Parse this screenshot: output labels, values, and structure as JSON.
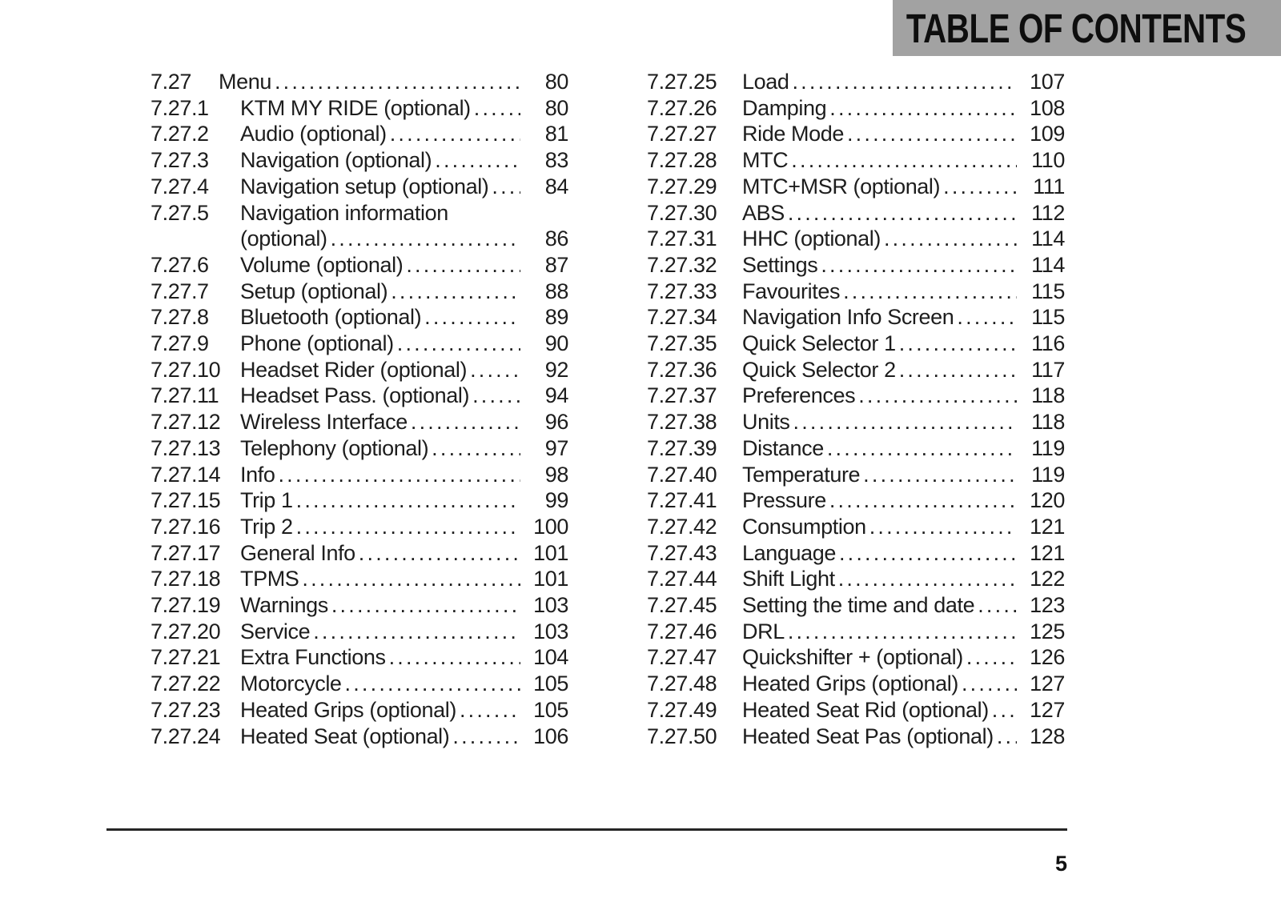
{
  "page": {
    "header_title": "TABLE OF CONTENTS",
    "page_number": "5",
    "colors": {
      "header_bg": "#a2a2a2",
      "text": "#1d1d1d",
      "rule": "#262626"
    }
  },
  "toc": {
    "columns": [
      {
        "entries": [
          {
            "num": "7.27",
            "title": "Menu",
            "page": "80",
            "level": "main"
          },
          {
            "num": "7.27.1",
            "title": "KTM MY RIDE (optional)",
            "page": "80"
          },
          {
            "num": "7.27.2",
            "title": "Audio (optional)",
            "page": "81"
          },
          {
            "num": "7.27.3",
            "title": "Navigation (optional)",
            "page": "83"
          },
          {
            "num": "7.27.4",
            "title": "Navigation setup (optional)",
            "page": "84"
          },
          {
            "num": "7.27.5",
            "title": "Navigation information",
            "title2": "(optional)",
            "page": "86"
          },
          {
            "num": "7.27.6",
            "title": "Volume (optional)",
            "page": "87"
          },
          {
            "num": "7.27.7",
            "title": "Setup (optional)",
            "page": "88"
          },
          {
            "num": "7.27.8",
            "title": "Bluetooth (optional)",
            "page": "89"
          },
          {
            "num": "7.27.9",
            "title": "Phone (optional)",
            "page": "90"
          },
          {
            "num": "7.27.10",
            "title": "Headset Rider (optional)",
            "page": "92"
          },
          {
            "num": "7.27.11",
            "title": "Headset Pass. (optional)",
            "page": "94"
          },
          {
            "num": "7.27.12",
            "title": "Wireless Interface",
            "page": "96"
          },
          {
            "num": "7.27.13",
            "title": "Telephony (optional)",
            "page": "97"
          },
          {
            "num": "7.27.14",
            "title": "Info",
            "page": "98"
          },
          {
            "num": "7.27.15",
            "title": "Trip 1",
            "page": "99"
          },
          {
            "num": "7.27.16",
            "title": "Trip 2",
            "page": "100"
          },
          {
            "num": "7.27.17",
            "title": "General Info",
            "page": "101"
          },
          {
            "num": "7.27.18",
            "title": "TPMS",
            "page": "101"
          },
          {
            "num": "7.27.19",
            "title": "Warnings",
            "page": "103"
          },
          {
            "num": "7.27.20",
            "title": "Service",
            "page": "103"
          },
          {
            "num": "7.27.21",
            "title": "Extra Functions",
            "page": "104"
          },
          {
            "num": "7.27.22",
            "title": "Motorcycle",
            "page": "105"
          },
          {
            "num": "7.27.23",
            "title": "Heated Grips (optional)",
            "page": "105"
          },
          {
            "num": "7.27.24",
            "title": "Heated Seat (optional)",
            "page": "106"
          }
        ]
      },
      {
        "entries": [
          {
            "num": "7.27.25",
            "title": "Load",
            "page": "107"
          },
          {
            "num": "7.27.26",
            "title": "Damping",
            "page": "108"
          },
          {
            "num": "7.27.27",
            "title": "Ride Mode",
            "page": "109"
          },
          {
            "num": "7.27.28",
            "title": "MTC",
            "page": "110"
          },
          {
            "num": "7.27.29",
            "title": "MTC+MSR (optional)",
            "page": "111"
          },
          {
            "num": "7.27.30",
            "title": "ABS",
            "page": "112"
          },
          {
            "num": "7.27.31",
            "title": "HHC (optional)",
            "page": "114"
          },
          {
            "num": "7.27.32",
            "title": "Settings",
            "page": "114"
          },
          {
            "num": "7.27.33",
            "title": "Favourites",
            "page": "115"
          },
          {
            "num": "7.27.34",
            "title": "Navigation Info Screen",
            "page": "115"
          },
          {
            "num": "7.27.35",
            "title": "Quick Selector 1",
            "page": "116"
          },
          {
            "num": "7.27.36",
            "title": "Quick Selector 2",
            "page": "117"
          },
          {
            "num": "7.27.37",
            "title": "Preferences",
            "page": "118"
          },
          {
            "num": "7.27.38",
            "title": "Units",
            "page": "118"
          },
          {
            "num": "7.27.39",
            "title": "Distance",
            "page": "119"
          },
          {
            "num": "7.27.40",
            "title": "Temperature",
            "page": "119"
          },
          {
            "num": "7.27.41",
            "title": "Pressure",
            "page": "120"
          },
          {
            "num": "7.27.42",
            "title": "Consumption",
            "page": "121"
          },
          {
            "num": "7.27.43",
            "title": "Language",
            "page": "121"
          },
          {
            "num": "7.27.44",
            "title": "Shift Light",
            "page": "122"
          },
          {
            "num": "7.27.45",
            "title": "Setting the time and date",
            "page": "123"
          },
          {
            "num": "7.27.46",
            "title": "DRL",
            "page": "125"
          },
          {
            "num": "7.27.47",
            "title": "Quickshifter + (optional)",
            "page": "126"
          },
          {
            "num": "7.27.48",
            "title": "Heated Grips (optional)",
            "page": "127"
          },
          {
            "num": "7.27.49",
            "title": "Heated Seat Rid (optional)",
            "page": "127"
          },
          {
            "num": "7.27.50",
            "title": "Heated Seat Pas (optional)",
            "page": "128"
          }
        ]
      }
    ]
  }
}
